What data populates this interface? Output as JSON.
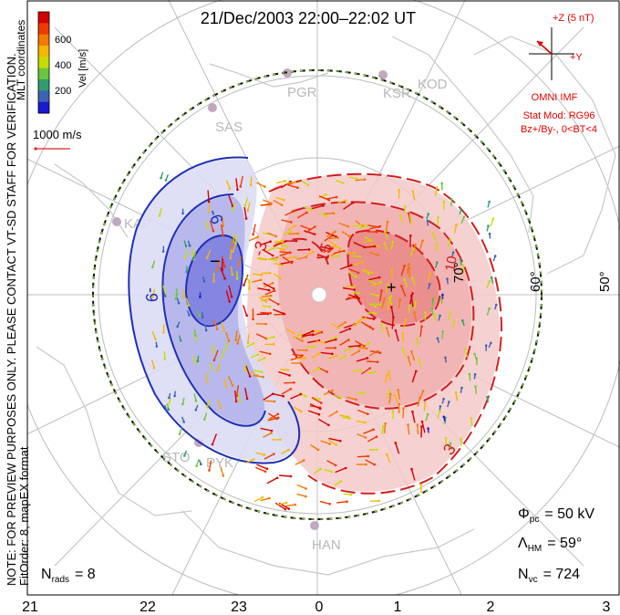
{
  "title": "21/Dec/2003 22:00–22:02 UT",
  "side_note": {
    "line1": "NOTE: FOR PREVIEW PURPOSES ONLY. PLEASE CONTACT VT-SD STAFF FOR VERIFICATION.",
    "line2": "FitOrder: 8, mapEX format"
  },
  "coord_label": "MLT coordinates",
  "colorbar": {
    "label": "Vel [m/s]",
    "ticks": [
      "600",
      "400",
      "200"
    ],
    "colors": [
      "#d40000",
      "#ee3a00",
      "#f57a00",
      "#f5b800",
      "#c8dc00",
      "#6cc63c",
      "#2f9e6a",
      "#3b64b4",
      "#1a1ad2"
    ]
  },
  "scale_label": "1000 m/s",
  "imf": {
    "z_label": "+Z (5 nT)",
    "y_label": "+Y",
    "source": "OMNI IMF",
    "model": "Stat Mod: RG96",
    "condition": "Bz+/By-, 0<BT<4",
    "color": "#e00000"
  },
  "stations": [
    "PGR",
    "KSR",
    "KOD",
    "SAS",
    "KAP",
    "STO",
    "PYK",
    "HAN"
  ],
  "contour_labels": {
    "neg_a": "-6",
    "neg_b": "-9",
    "pos_a": "15",
    "pos_b": "-3",
    "pos_c": "10",
    "pos_d": "3",
    "min_marker": "−",
    "max_marker": "+"
  },
  "lat_labels": [
    "70°",
    "60°",
    "50°"
  ],
  "mlt_labels": [
    "21",
    "22",
    "23",
    "0",
    "1",
    "2",
    "3"
  ],
  "stats": {
    "phi_label": "Φ",
    "phi_sub": "pc",
    "phi_value": "= 50 kV",
    "lambda_label": "Λ",
    "lambda_sub": "HM",
    "lambda_value": "= 59°",
    "nvc_label": "N",
    "nvc_sub": "vc",
    "nvc_value": "= 724",
    "nrads_label": "N",
    "nrads_sub": "rads",
    "nrads_value": "= 8"
  },
  "colors": {
    "negative_cell": "#7c7ce6",
    "positive_cell": "#ee8c8c",
    "negative_contour": "#1e2fb4",
    "positive_contour": "#d21e1e",
    "grid": "#b8b8b8"
  }
}
